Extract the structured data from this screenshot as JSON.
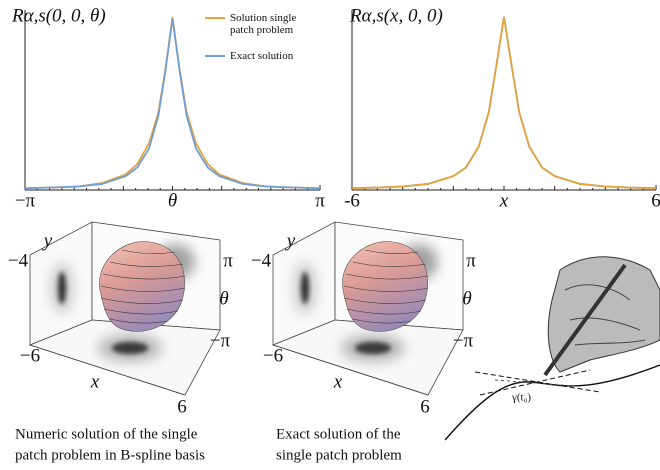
{
  "chart_data": [
    {
      "type": "line",
      "title": "Rα,s(0, 0, θ)",
      "x_label": "θ",
      "x": [
        -3.14159,
        -2.5,
        -2,
        -1.5,
        -1,
        -0.75,
        -0.5,
        -0.3,
        -0.15,
        0,
        0.15,
        0.3,
        0.5,
        0.75,
        1,
        1.5,
        2,
        2.5,
        3.14159
      ],
      "series": [
        {
          "name": "Solution single patch problem",
          "color": "#e8a33a",
          "values": [
            0.01,
            0.015,
            0.02,
            0.04,
            0.09,
            0.15,
            0.27,
            0.45,
            0.7,
            1,
            0.7,
            0.45,
            0.27,
            0.15,
            0.09,
            0.04,
            0.02,
            0.015,
            0.01
          ]
        },
        {
          "name": "Exact solution",
          "color": "#6f9fd8",
          "values": [
            0.01,
            0.015,
            0.02,
            0.035,
            0.08,
            0.13,
            0.24,
            0.43,
            0.69,
            0.99,
            0.69,
            0.43,
            0.24,
            0.13,
            0.08,
            0.035,
            0.02,
            0.015,
            0.01
          ]
        }
      ],
      "xlim": [
        -3.14159,
        3.14159
      ],
      "xticks": [
        {
          "value": -3.14159,
          "label": "−π"
        },
        {
          "value": 3.14159,
          "label": "π"
        }
      ],
      "ylim": [
        0,
        1.04
      ],
      "legend": "upper right"
    },
    {
      "type": "line",
      "title": "Rα,s(x, 0, 0)",
      "x_label": "x",
      "x": [
        -6,
        -5,
        -4,
        -3,
        -2,
        -1.5,
        -1,
        -0.6,
        -0.3,
        0,
        0.3,
        0.6,
        1,
        1.5,
        2,
        3,
        4,
        5,
        6
      ],
      "series": [
        {
          "color": "#6f9fd8",
          "values": [
            0.01,
            0.014,
            0.02,
            0.035,
            0.08,
            0.13,
            0.25,
            0.45,
            0.72,
            1,
            0.72,
            0.45,
            0.25,
            0.13,
            0.08,
            0.035,
            0.02,
            0.014,
            0.01
          ]
        },
        {
          "color": "#e8a33a",
          "values": [
            0.01,
            0.014,
            0.02,
            0.035,
            0.08,
            0.13,
            0.25,
            0.45,
            0.72,
            1,
            0.72,
            0.45,
            0.25,
            0.13,
            0.08,
            0.035,
            0.02,
            0.014,
            0.01
          ]
        }
      ],
      "xlim": [
        -6,
        6
      ],
      "xticks": [
        -6,
        6
      ],
      "ylim": [
        0,
        1.04
      ]
    }
  ],
  "figures": [
    {
      "axis_labels": {
        "y": "y",
        "y_min": "−4",
        "theta_max": "π",
        "theta": "θ",
        "theta_min": "−π",
        "x_min": "−6",
        "x": "x",
        "x_max": "6"
      },
      "caption": [
        "Numeric solution of the single",
        "patch problem in B-spline basis"
      ]
    },
    {
      "axis_labels": {
        "y": "y",
        "y_min": "−4",
        "theta_max": "π",
        "theta": "θ",
        "theta_min": "−π",
        "x_min": "−6",
        "x": "x",
        "x_max": "6"
      },
      "caption": [
        "Exact solution of the",
        "single patch problem"
      ]
    }
  ],
  "sketch": {
    "curve_label": "γ(t₀)"
  }
}
